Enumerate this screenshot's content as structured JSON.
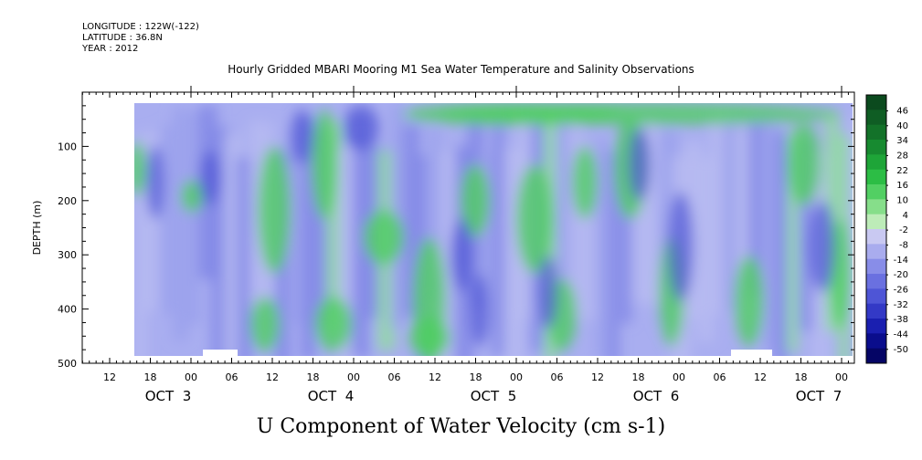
{
  "header": {
    "longitude": "LONGITUDE : 122W(-122)",
    "latitude": "LATITUDE : 36.8N",
    "year": "YEAR : 2012",
    "title": "Hourly Gridded MBARI Mooring M1 Sea Water Temperature and Salinity Observations"
  },
  "chart_data": {
    "type": "heatmap",
    "title": "Hourly Gridded MBARI Mooring M1 Sea Water Temperature and Salinity Observations",
    "xlabel": "U Component of Water Velocity (cm s-1)",
    "ylabel": "DEPTH (m)",
    "ylim": [
      500,
      0
    ],
    "yticks": [
      100,
      200,
      300,
      400,
      500
    ],
    "x_hour_ticks": [
      "12",
      "18",
      "00",
      "06",
      "12",
      "18",
      "00",
      "06",
      "12",
      "18",
      "00",
      "06",
      "12",
      "18",
      "00",
      "06",
      "12",
      "18",
      "00"
    ],
    "x_day_labels": [
      "OCT  3",
      "OCT  4",
      "OCT  5",
      "OCT  6",
      "OCT  7"
    ],
    "colorbar_labels": [
      "46",
      "40",
      "34",
      "28",
      "22",
      "16",
      "10",
      "4",
      "-2",
      "-8",
      "-14",
      "-20",
      "-26",
      "-32",
      "-38",
      "-44",
      "-50"
    ],
    "colorbar_colors": [
      "#0b4a1e",
      "#0f5d24",
      "#137229",
      "#178a30",
      "#1ea538",
      "#2cbd45",
      "#52cf63",
      "#86de8a",
      "#bdecb8",
      "#c9c9f2",
      "#a9acee",
      "#888de8",
      "#6a70e0",
      "#4e55d6",
      "#3339c6",
      "#1a1fb0",
      "#0a0d8c",
      "#050565"
    ],
    "grid": false,
    "legend": "colorbar-right"
  }
}
